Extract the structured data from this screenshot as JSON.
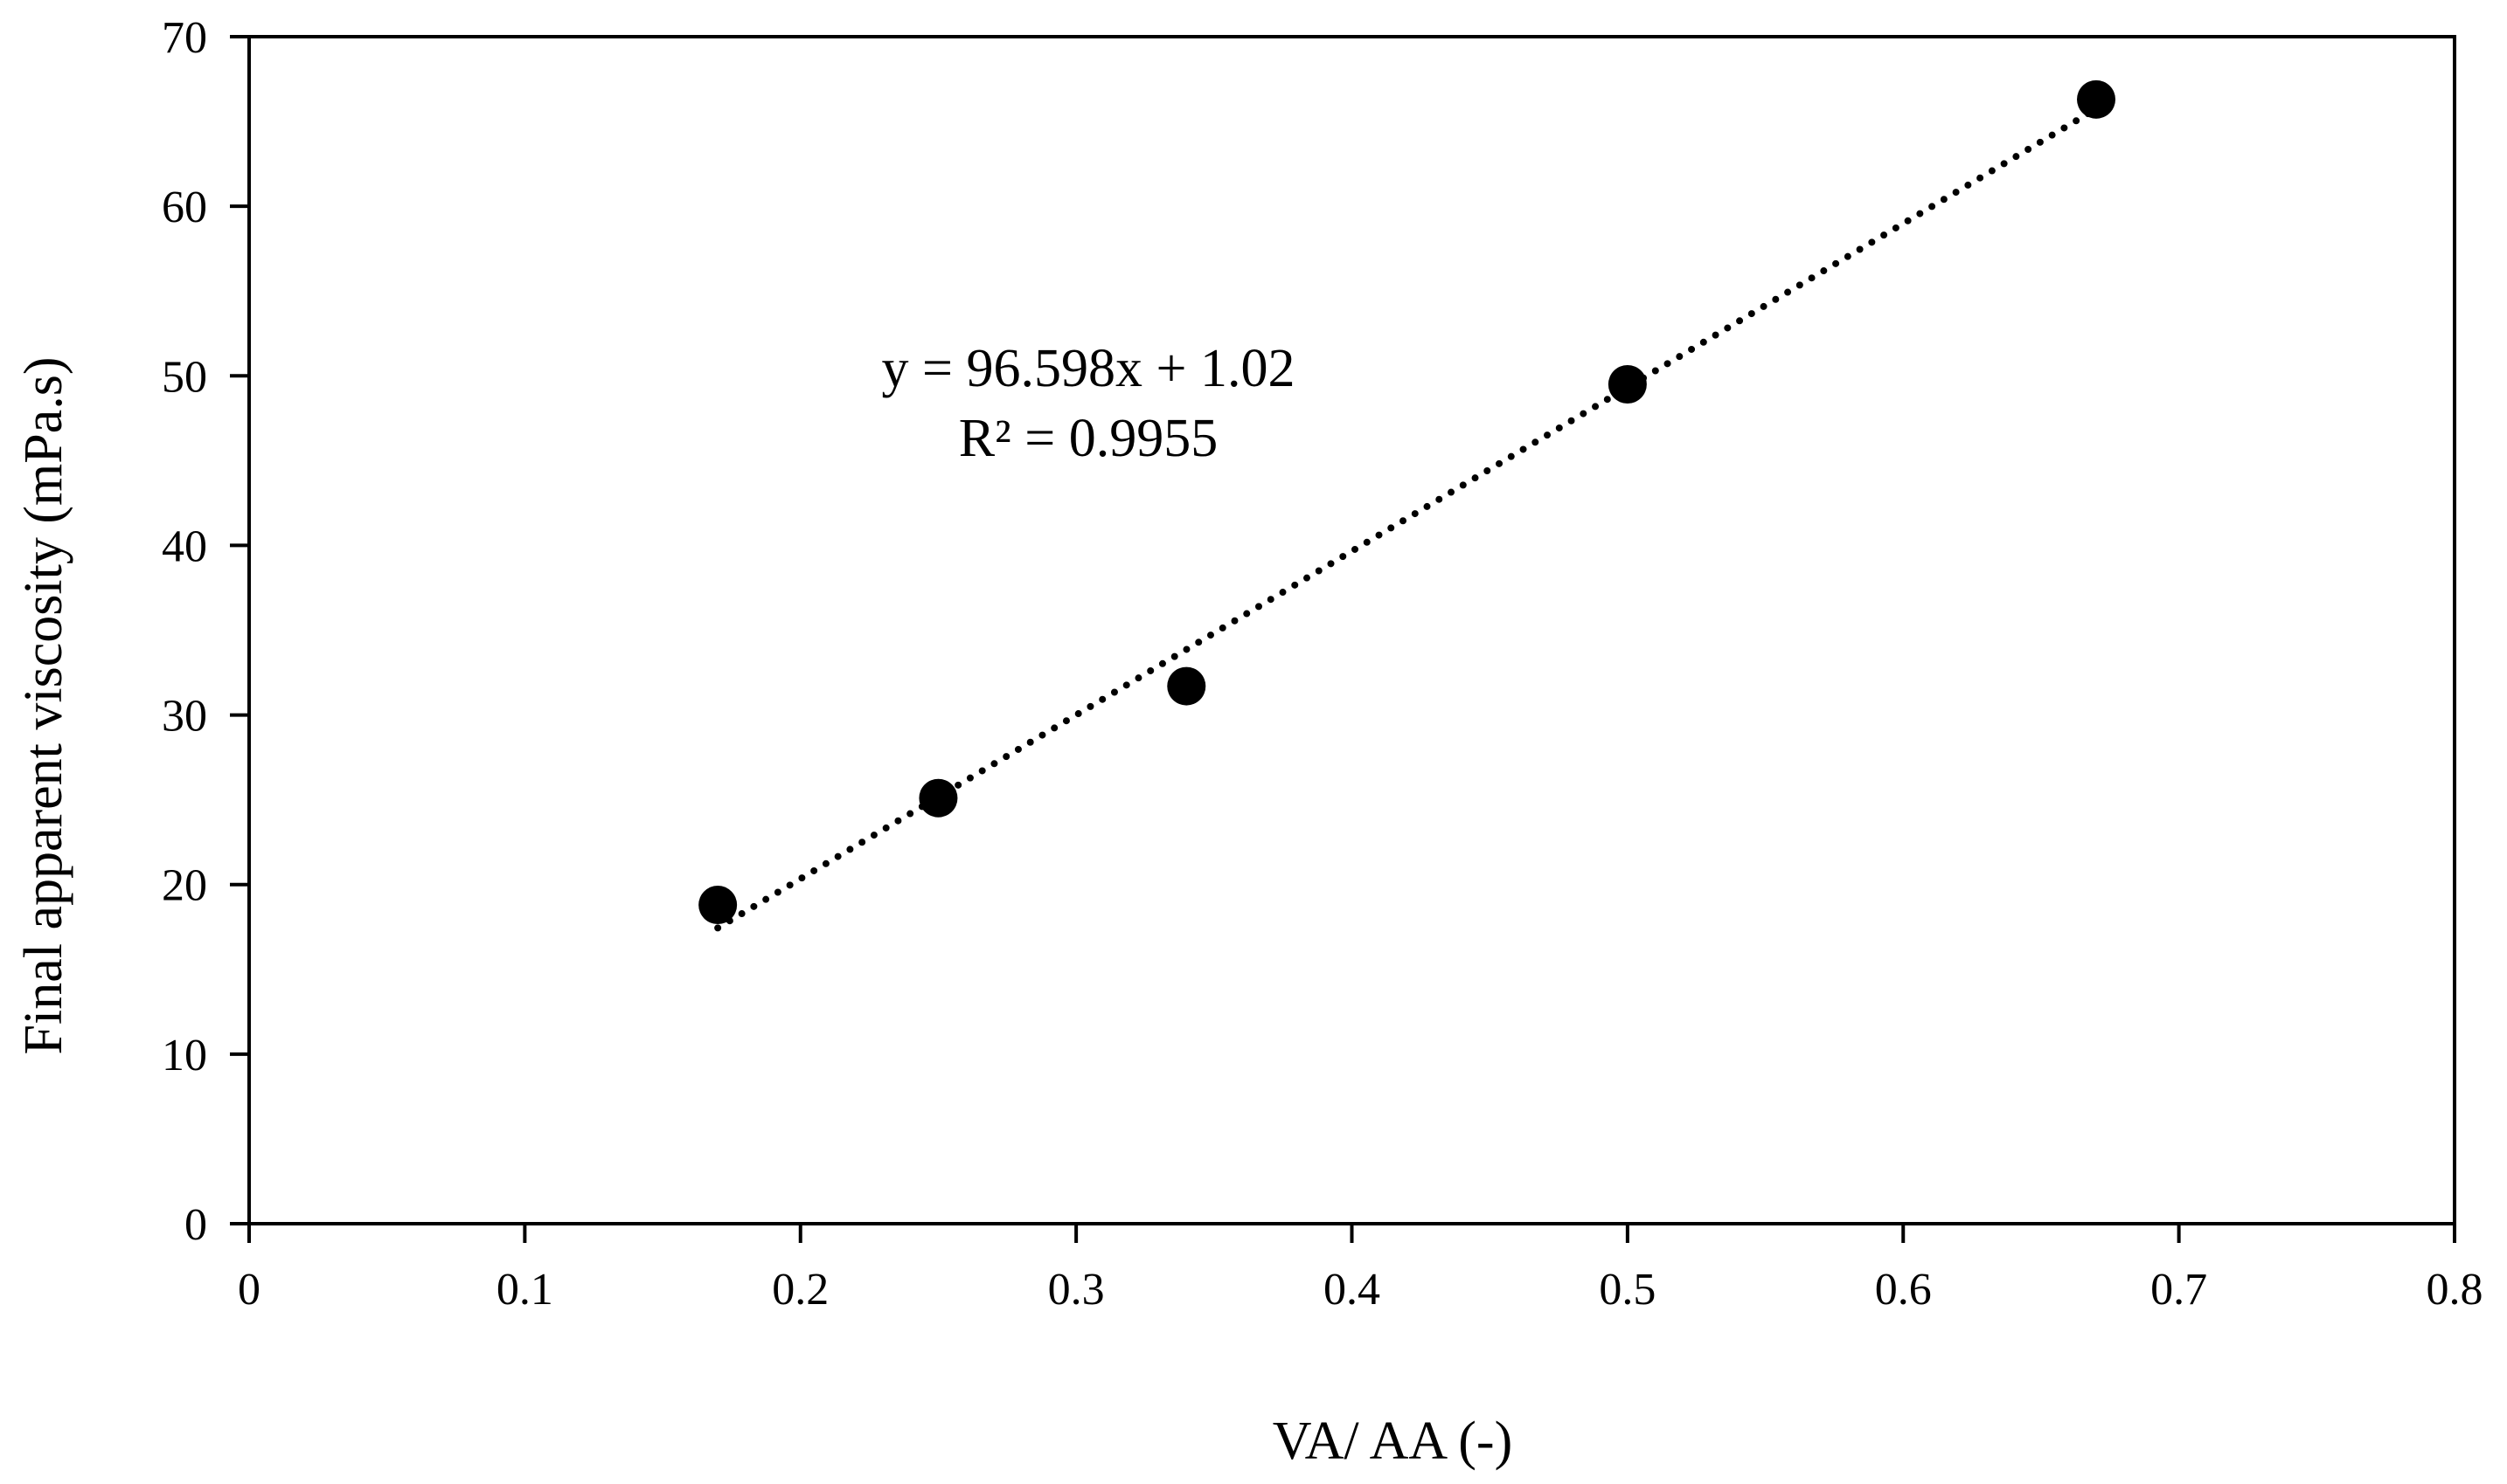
{
  "chart_data": {
    "type": "scatter",
    "title": "",
    "xlabel": "VA/ AA (-)",
    "ylabel": "Final apparent viscosity (mPa.s)",
    "xlim": [
      0,
      0.8
    ],
    "ylim": [
      0,
      70
    ],
    "x_ticks": [
      0,
      0.1,
      0.2,
      0.3,
      0.4,
      0.5,
      0.6,
      0.7,
      0.8
    ],
    "x_tick_labels": [
      "0",
      "0.1",
      "0.2",
      "0.3",
      "0.4",
      "0.5",
      "0.6",
      "0.7",
      "0.8"
    ],
    "y_ticks": [
      0,
      10,
      20,
      30,
      40,
      50,
      60,
      70
    ],
    "y_tick_labels": [
      "0",
      "10",
      "20",
      "30",
      "40",
      "50",
      "60",
      "70"
    ],
    "grid": false,
    "series": [
      {
        "name": "data",
        "x": [
          0.17,
          0.25,
          0.34,
          0.5,
          0.67
        ],
        "y": [
          18.8,
          25.1,
          31.7,
          49.5,
          66.3
        ],
        "color": "#000000"
      }
    ],
    "trendline": {
      "type": "linear",
      "slope": 96.598,
      "intercept": 1.02,
      "x_range": [
        0.17,
        0.67
      ],
      "style": "dotted",
      "equation_text": "y = 96.598x + 1.02",
      "r2_text": "R² = 0.9955"
    }
  }
}
